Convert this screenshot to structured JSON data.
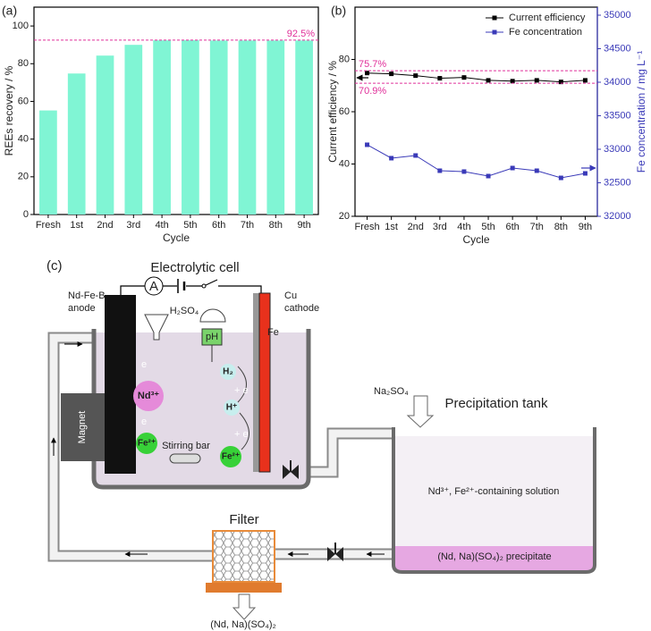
{
  "chart_data": [
    {
      "type": "bar",
      "panel": "(a)",
      "ylabel": "REEs recovery / %",
      "xlabel": "Cycle",
      "categories": [
        "Fresh",
        "1st",
        "2nd",
        "3rd",
        "4th",
        "5th",
        "6th",
        "7th",
        "8th",
        "9th"
      ],
      "values": [
        55.2,
        74.8,
        84.3,
        90,
        92.4,
        92.5,
        92.3,
        92.3,
        92.3,
        92.3
      ],
      "color": "#80f5d4",
      "ylim": [
        0,
        110
      ],
      "yticks": [
        0,
        20,
        40,
        60,
        80,
        100
      ],
      "reference_lines": [
        {
          "value": 92.5,
          "label": "92.5%",
          "color": "#e0309a"
        }
      ]
    },
    {
      "type": "line",
      "panel": "(b)",
      "ylabel": "Current efficiency / %",
      "y2label": "Fe concentration / mg L⁻¹",
      "xlabel": "Cycle",
      "categories": [
        "Fresh",
        "1st",
        "2nd",
        "3rd",
        "4th",
        "5th",
        "6th",
        "7th",
        "8th",
        "9th"
      ],
      "series": [
        {
          "name": "Current efficiency",
          "color": "#000000",
          "values": [
            74.8,
            74.5,
            73.8,
            72.8,
            73.1,
            72,
            71.7,
            72,
            71.4,
            72
          ]
        },
        {
          "name": "Fe concentration",
          "color": "#3a3ab8",
          "axis": "y2",
          "values": [
            33067,
            32867,
            32907,
            32680,
            32667,
            32600,
            32720,
            32680,
            32573,
            32640
          ]
        }
      ],
      "ylim": [
        20,
        100
      ],
      "yticks": [
        20,
        40,
        60,
        80
      ],
      "y2lim": [
        32000,
        35120
      ],
      "y2ticks": [
        32000,
        32500,
        33000,
        33500,
        34000,
        34500,
        35000
      ],
      "reference_lines": [
        {
          "value": 75.7,
          "label": "75.7%",
          "color": "#e0309a"
        },
        {
          "value": 70.9,
          "label": "70.9%",
          "color": "#e0309a"
        }
      ],
      "legend": "upper right"
    }
  ],
  "diagram": {
    "panel": "(c)",
    "cell_title": "Electrolytic cell",
    "anode_label": [
      "Nd-Fe-B",
      "anode"
    ],
    "cathode_label": [
      "Cu",
      "cathode"
    ],
    "ammeter": "A",
    "acid": "H₂SO₄",
    "ph": "pH",
    "fe": "Fe",
    "ions": {
      "nd": "Nd³⁺",
      "fe_anode": "Fe²⁺",
      "h2": "H₂",
      "h_plus": "H⁺",
      "fe_cathode": "Fe²⁺"
    },
    "electrons": [
      "e",
      "e",
      "+ e",
      "+ e"
    ],
    "magnet": "Magnet",
    "stirring_bar": "Stirring bar",
    "tank_title": "Precipitation tank",
    "salt": "Na₂SO₄",
    "solution": "Nd³⁺, Fe²⁺-containing solution",
    "precipitate": "(Nd, Na)(SO₄)₂ precipitate",
    "filter": "Filter",
    "product": "(Nd, Na)(SO₄)₂"
  }
}
